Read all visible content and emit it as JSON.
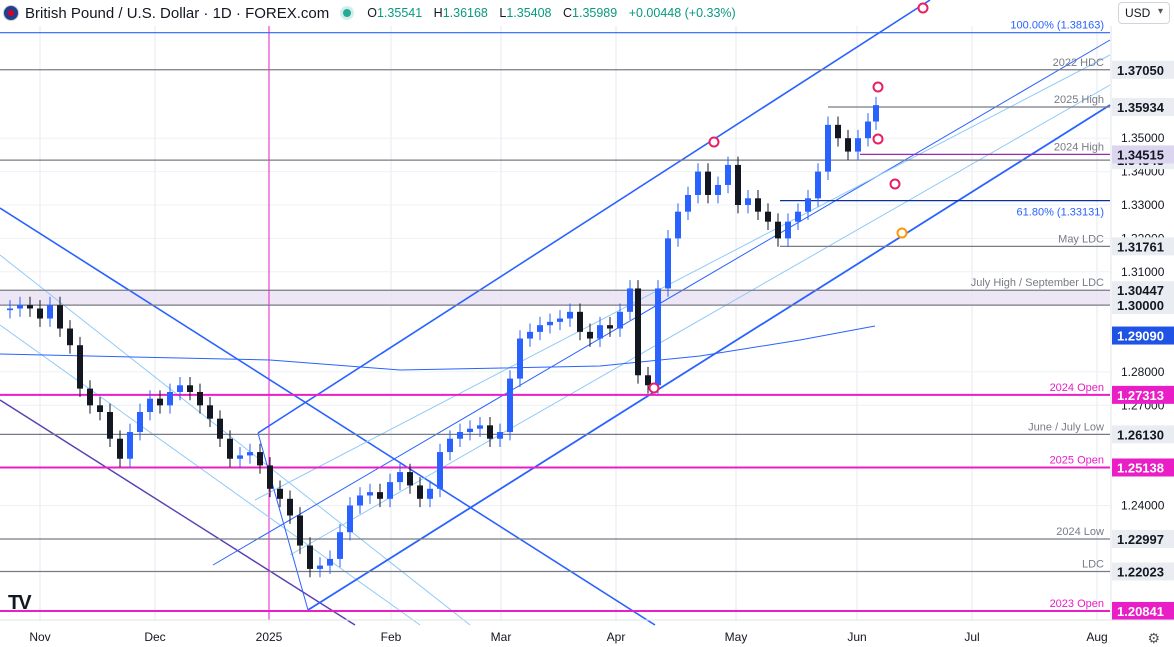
{
  "header": {
    "symbol": "British Pound / U.S. Dollar · 1D · FOREX.com",
    "open_label": "O",
    "open": "1.35541",
    "high_label": "H",
    "high": "1.36168",
    "low_label": "L",
    "low": "1.35408",
    "close_label": "C",
    "close": "1.35989",
    "change": "+0.00448 (+0.33%)"
  },
  "currency": "USD",
  "logo": "TV",
  "chart_data": {
    "type": "candlestick",
    "instrument": "GBP/USD",
    "timeframe": "1D",
    "ylim": [
      1.2066,
      1.389
    ],
    "x_ticks": [
      "Nov",
      "Dec",
      "2025",
      "Feb",
      "Mar",
      "Apr",
      "May",
      "Jun",
      "Jul",
      "Aug"
    ],
    "y_ticks": [
      "1.35000",
      "1.34000",
      "1.33000",
      "1.32000",
      "1.31000",
      "1.28000",
      "1.27000",
      "1.24000"
    ],
    "levels": [
      {
        "price": 1.3816,
        "label": "100.00% (1.38163)",
        "tag": "",
        "color": "#2962ff"
      },
      {
        "price": 1.3705,
        "label": "2022 HDC",
        "tag": "1.37050",
        "color": "#787b86"
      },
      {
        "price": 1.35934,
        "label": "2025 High",
        "tag": "1.35934",
        "color": "#787b86"
      },
      {
        "price": 1.34343,
        "label": "",
        "tag": "1.34343",
        "color": "#787b86"
      },
      {
        "price": 1.34515,
        "label": "2024 High",
        "tag": "1.34515",
        "color": "#9c27b0"
      },
      {
        "price": 1.33131,
        "label": "61.80% (1.33131)",
        "tag": "",
        "color": "#0c3299"
      },
      {
        "price": 1.31761,
        "label": "May LDC",
        "tag": "1.31761",
        "color": "#787b86"
      },
      {
        "price": 1.30447,
        "label": "July High / September LDC",
        "tag": "1.30447",
        "color": "#787b86"
      },
      {
        "price": 1.3,
        "label": "",
        "tag": "1.30000",
        "color": "#787b86"
      },
      {
        "price": 1.2909,
        "label": "",
        "tag": "1.29090",
        "color": "#2962ff"
      },
      {
        "price": 1.27313,
        "label": "2024 Open",
        "tag": "1.27313",
        "color": "#e91ec7"
      },
      {
        "price": 1.2613,
        "label": "June / July Low",
        "tag": "1.26130",
        "color": "#787b86"
      },
      {
        "price": 1.25138,
        "label": "2025 Open",
        "tag": "1.25138",
        "color": "#e91ec7"
      },
      {
        "price": 1.22997,
        "label": "2024 Low",
        "tag": "1.22997",
        "color": "#787b86"
      },
      {
        "price": 1.22023,
        "label": "LDC",
        "tag": "1.22023",
        "color": "#787b86"
      },
      {
        "price": 1.20841,
        "label": "2023 Open",
        "tag": "1.20841",
        "color": "#e91ec7"
      }
    ],
    "ma_200": [
      {
        "t": "Nov",
        "v": 1.2795
      },
      {
        "t": "Jan",
        "v": 1.2789
      },
      {
        "t": "Mar",
        "v": 1.2775
      },
      {
        "t": "Jun",
        "v": 1.2905
      }
    ],
    "candles_ohlc_sample": [
      [
        "Oct 28",
        1.2985,
        1.3011,
        1.2945,
        1.297
      ],
      [
        "Nov 6",
        1.2935,
        1.3045,
        1.2845,
        1.288
      ],
      [
        "Nov 22",
        1.26,
        1.2615,
        1.2487,
        1.253
      ],
      [
        "Dec 6",
        1.273,
        1.281,
        1.27,
        1.274
      ],
      [
        "Dec 31",
        1.252,
        1.26,
        1.247,
        1.2515
      ],
      [
        "Jan 13",
        1.22,
        1.227,
        1.21,
        1.223
      ],
      [
        "Feb 3",
        1.234,
        1.242,
        1.225,
        1.241
      ],
      [
        "Feb 28",
        1.257,
        1.264,
        1.256,
        1.258
      ],
      [
        "Mar 18",
        1.299,
        1.3015,
        1.293,
        1.298
      ],
      [
        "Apr 8",
        1.277,
        1.28,
        1.2708,
        1.279
      ],
      [
        "Apr 21",
        1.338,
        1.3423,
        1.334,
        1.34
      ],
      [
        "May 12",
        1.32,
        1.325,
        1.314,
        1.321
      ],
      [
        "May 26",
        1.354,
        1.3593,
        1.35,
        1.354
      ],
      [
        "Jun 5",
        1.35541,
        1.36168,
        1.35408,
        1.35989
      ]
    ],
    "annotations": [
      "Descending channel (Nov–Feb)",
      "Ascending pitchfork channel (Jan–Jun)"
    ]
  },
  "settings_icon": "gear-icon"
}
